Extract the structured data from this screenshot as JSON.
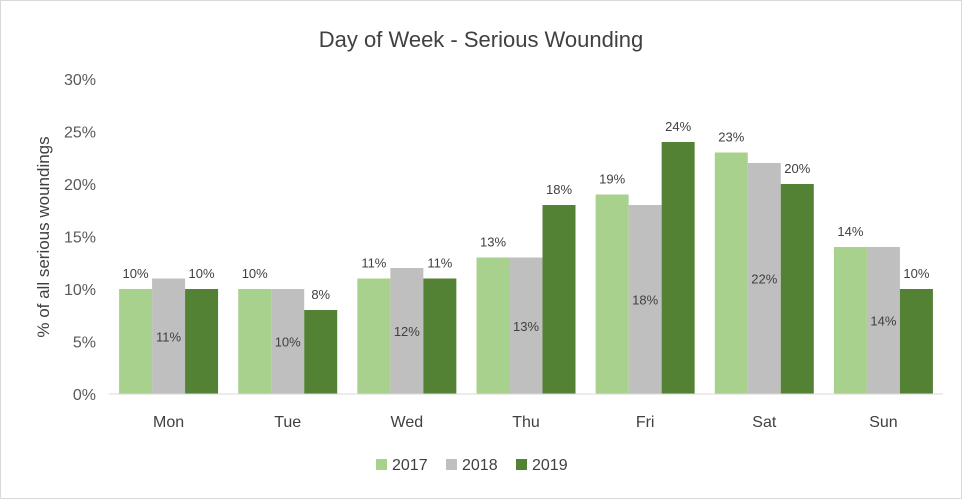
{
  "chart_data": {
    "type": "bar",
    "title": "Day of Week - Serious Wounding",
    "ylabel": "% of all serious woundings",
    "xlabel": "",
    "ylim": [
      0,
      30
    ],
    "yticks": [
      "0%",
      "5%",
      "10%",
      "15%",
      "20%",
      "25%",
      "30%"
    ],
    "categories": [
      "Mon",
      "Tue",
      "Wed",
      "Thu",
      "Fri",
      "Sat",
      "Sun"
    ],
    "series": [
      {
        "name": "2017",
        "color": "#a9d18e",
        "values": [
          10,
          10,
          11,
          13,
          19,
          23,
          14
        ]
      },
      {
        "name": "2018",
        "color": "#bfbfbf",
        "values": [
          11,
          10,
          12,
          13,
          18,
          22,
          14
        ]
      },
      {
        "name": "2019",
        "color": "#548235",
        "values": [
          10,
          8,
          11,
          18,
          24,
          20,
          10
        ]
      }
    ],
    "value_suffix": "%",
    "legend_position": "bottom",
    "grid": false
  }
}
